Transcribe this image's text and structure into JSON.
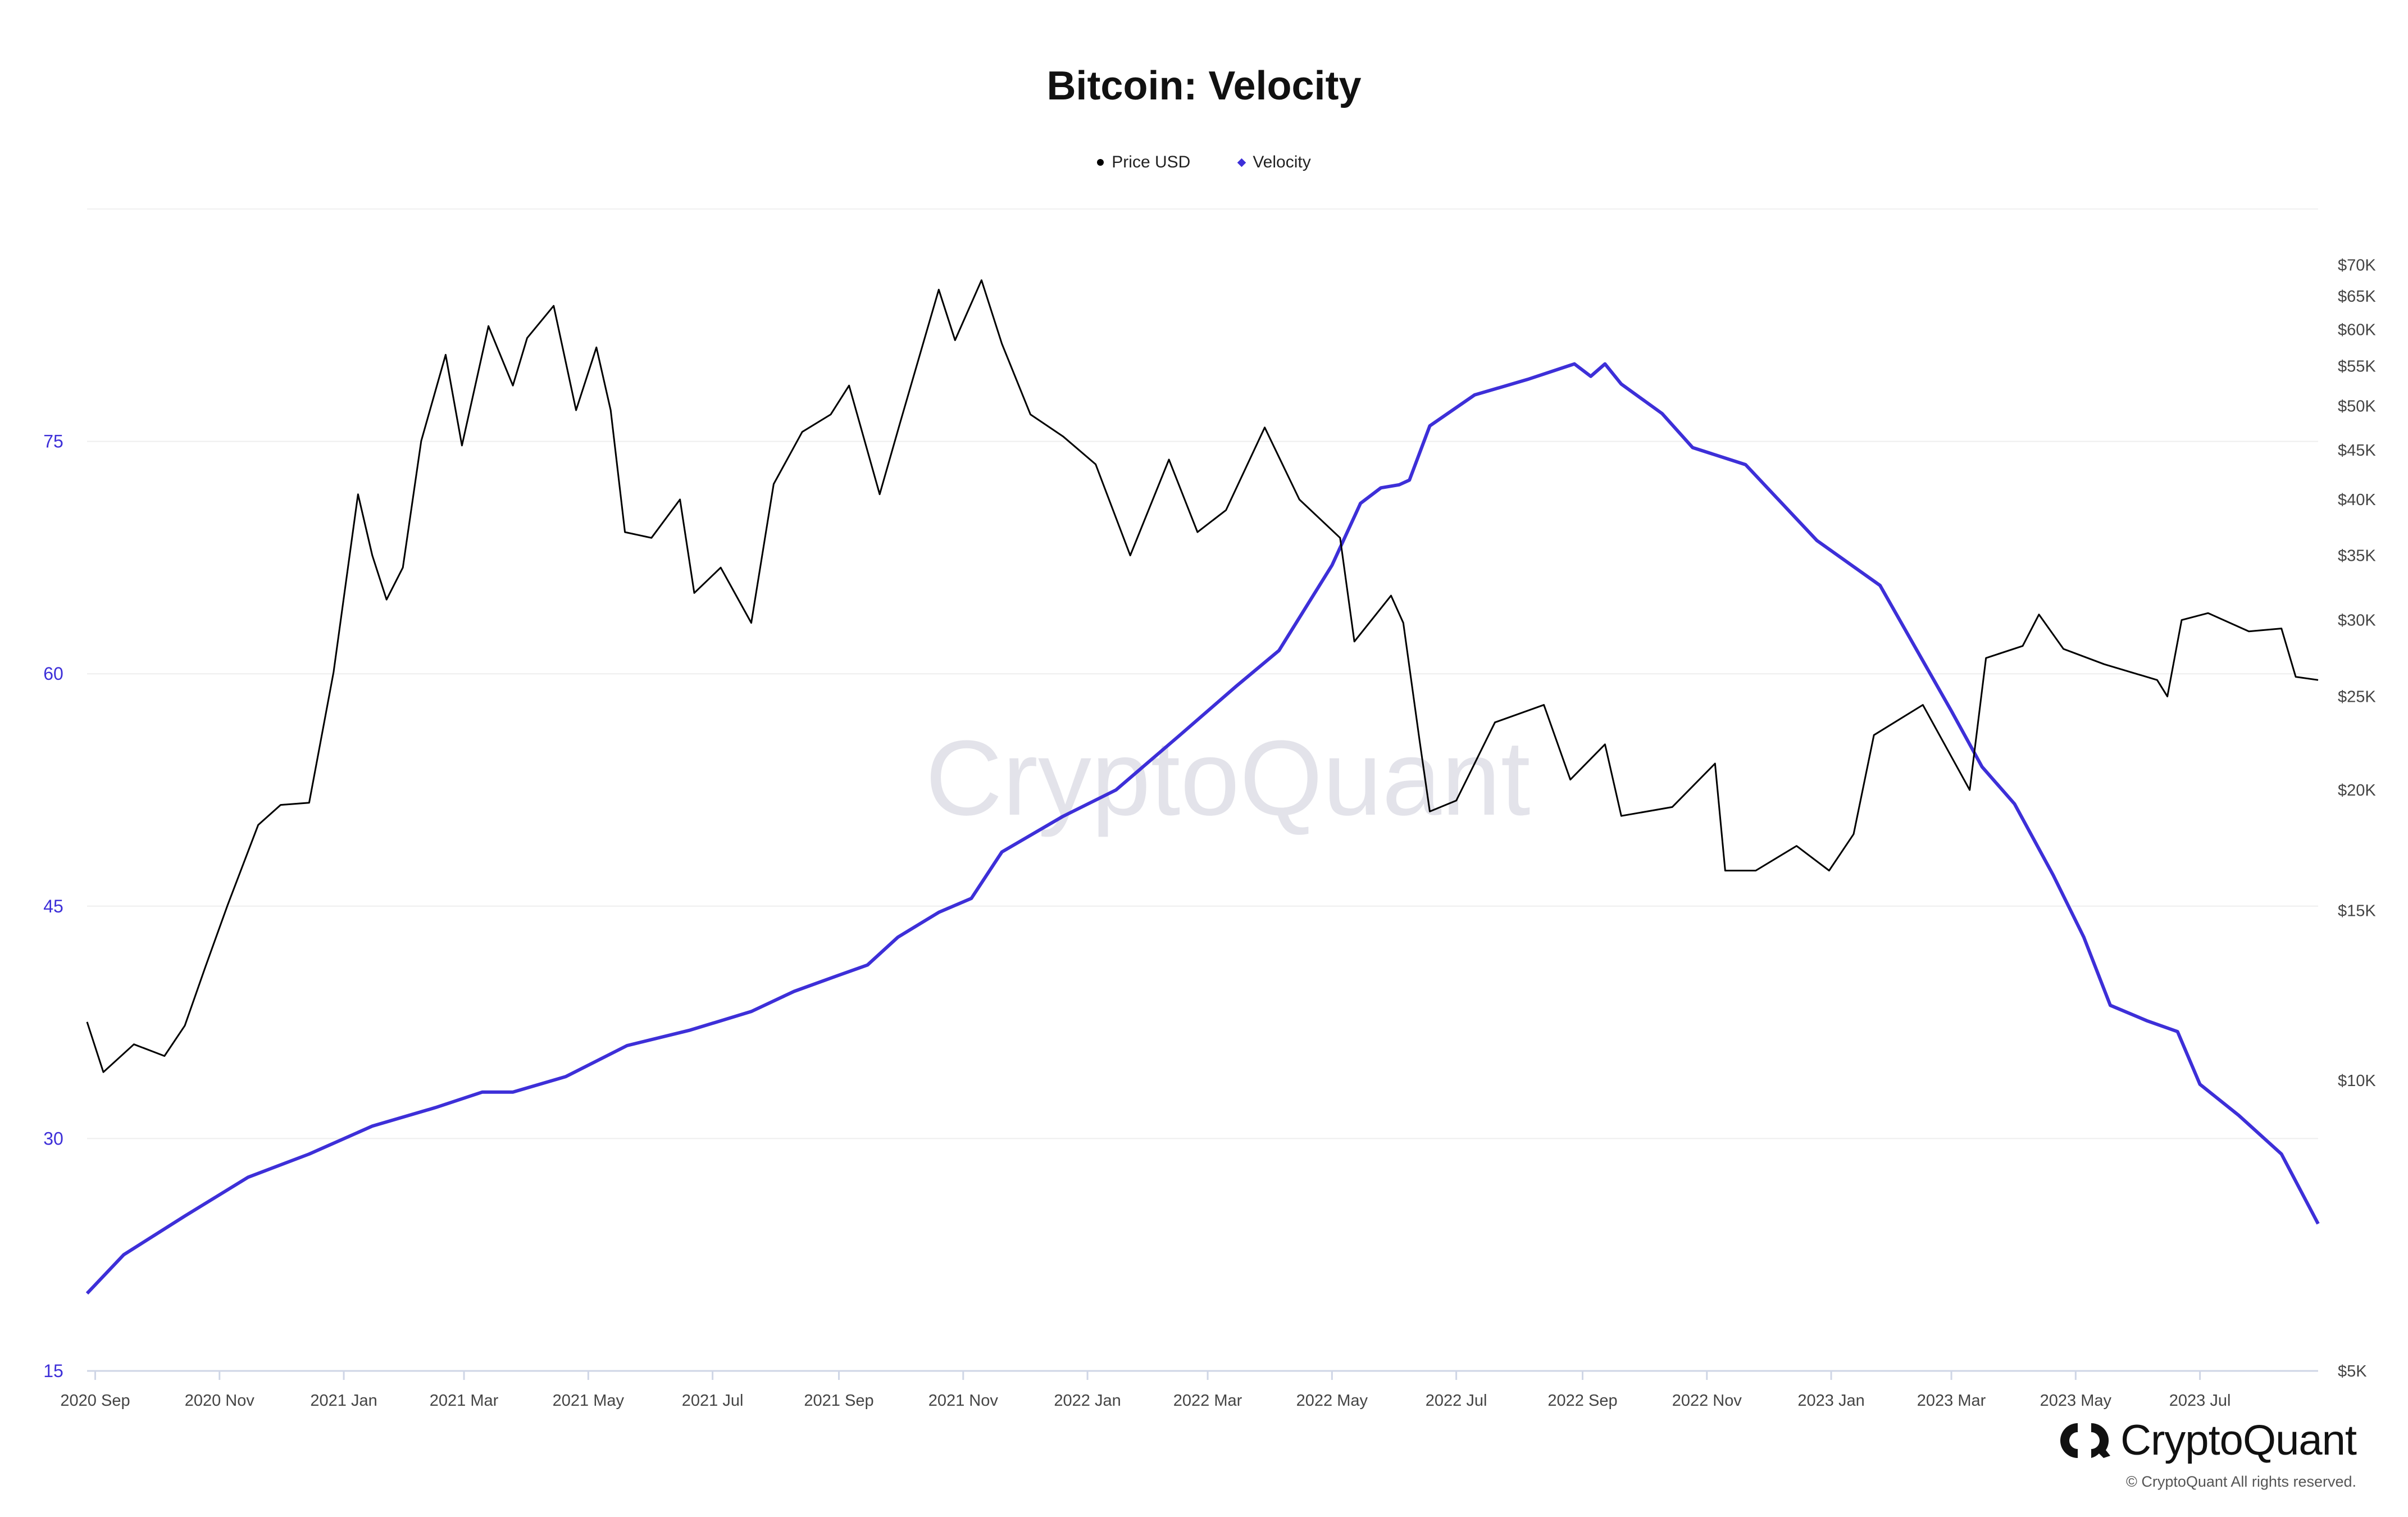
{
  "title": "Bitcoin: Velocity",
  "legend": [
    {
      "label": "Price USD",
      "color": "#000000",
      "marker": "circle"
    },
    {
      "label": "Velocity",
      "color": "#3d2fd8",
      "marker": "diamond"
    }
  ],
  "watermark": "CryptoQuant",
  "brand": {
    "name": "CryptoQuant",
    "logo_icon": "cryptoquant-logo-icon"
  },
  "copyright": "© CryptoQuant All rights reserved.",
  "chart_data": {
    "type": "line",
    "title": "Bitcoin: Velocity",
    "x_tick_labels": [
      "2020 Sep",
      "2020 Nov",
      "2021 Jan",
      "2021 Mar",
      "2021 May",
      "2021 Jul",
      "2021 Sep",
      "2021 Nov",
      "2022 Jan",
      "2022 Mar",
      "2022 May",
      "2022 Jul",
      "2022 Sep",
      "2022 Nov",
      "2023 Jan",
      "2023 Mar",
      "2023 May",
      "2023 Jul"
    ],
    "x_range": [
      "2020-08-28",
      "2023-08-28"
    ],
    "y_left": {
      "label": "",
      "range": [
        15,
        90
      ],
      "ticks": [
        15,
        30,
        45,
        60,
        75
      ],
      "tick_labels": [
        "15",
        "30",
        "45",
        "60",
        "75"
      ],
      "color": "#3d2fd8"
    },
    "y_right": {
      "label": "",
      "scale": "log",
      "range": [
        5000,
        80000
      ],
      "ticks": [
        5000,
        10000,
        15000,
        20000,
        25000,
        30000,
        35000,
        40000,
        45000,
        50000,
        55000,
        60000,
        65000,
        70000
      ],
      "tick_labels": [
        "$5K",
        "$10K",
        "$15K",
        "$20K",
        "$25K",
        "$30K",
        "$35K",
        "$40K",
        "$45K",
        "$50K",
        "$55K",
        "$60K",
        "$65K",
        "$70K"
      ]
    },
    "grid": true,
    "legend_position": "top-center",
    "series": [
      {
        "name": "Price USD",
        "axis": "right",
        "color": "#000000",
        "points": [
          [
            "2020-08-28",
            11500
          ],
          [
            "2020-09-05",
            10200
          ],
          [
            "2020-09-20",
            10900
          ],
          [
            "2020-10-05",
            10600
          ],
          [
            "2020-10-15",
            11400
          ],
          [
            "2020-10-25",
            13100
          ],
          [
            "2020-11-05",
            15200
          ],
          [
            "2020-11-20",
            18400
          ],
          [
            "2020-12-01",
            19300
          ],
          [
            "2020-12-15",
            19400
          ],
          [
            "2020-12-27",
            26500
          ],
          [
            "2021-01-08",
            40500
          ],
          [
            "2021-01-15",
            35000
          ],
          [
            "2021-01-22",
            31500
          ],
          [
            "2021-01-30",
            34000
          ],
          [
            "2021-02-08",
            46000
          ],
          [
            "2021-02-20",
            56500
          ],
          [
            "2021-02-28",
            45500
          ],
          [
            "2021-03-13",
            60500
          ],
          [
            "2021-03-25",
            52500
          ],
          [
            "2021-04-01",
            58800
          ],
          [
            "2021-04-14",
            63500
          ],
          [
            "2021-04-25",
            49500
          ],
          [
            "2021-05-05",
            57500
          ],
          [
            "2021-05-12",
            49500
          ],
          [
            "2021-05-19",
            37000
          ],
          [
            "2021-06-01",
            36500
          ],
          [
            "2021-06-15",
            40000
          ],
          [
            "2021-06-22",
            32000
          ],
          [
            "2021-07-05",
            34000
          ],
          [
            "2021-07-20",
            29800
          ],
          [
            "2021-07-31",
            41500
          ],
          [
            "2021-08-14",
            47000
          ],
          [
            "2021-08-28",
            49000
          ],
          [
            "2021-09-06",
            52500
          ],
          [
            "2021-09-21",
            40500
          ],
          [
            "2021-10-01",
            48000
          ],
          [
            "2021-10-20",
            66000
          ],
          [
            "2021-10-28",
            58500
          ],
          [
            "2021-11-10",
            67500
          ],
          [
            "2021-11-20",
            58000
          ],
          [
            "2021-12-04",
            49000
          ],
          [
            "2021-12-20",
            46500
          ],
          [
            "2022-01-05",
            43500
          ],
          [
            "2022-01-22",
            35000
          ],
          [
            "2022-02-10",
            44000
          ],
          [
            "2022-02-24",
            37000
          ],
          [
            "2022-03-10",
            39000
          ],
          [
            "2022-03-29",
            47500
          ],
          [
            "2022-04-15",
            40000
          ],
          [
            "2022-05-05",
            36500
          ],
          [
            "2022-05-12",
            28500
          ],
          [
            "2022-05-30",
            31800
          ],
          [
            "2022-06-05",
            29800
          ],
          [
            "2022-06-13",
            22500
          ],
          [
            "2022-06-18",
            19000
          ],
          [
            "2022-07-01",
            19500
          ],
          [
            "2022-07-20",
            23500
          ],
          [
            "2022-08-13",
            24500
          ],
          [
            "2022-08-26",
            20500
          ],
          [
            "2022-09-12",
            22300
          ],
          [
            "2022-09-20",
            18800
          ],
          [
            "2022-10-15",
            19200
          ],
          [
            "2022-11-05",
            21300
          ],
          [
            "2022-11-10",
            16500
          ],
          [
            "2022-11-25",
            16500
          ],
          [
            "2022-12-15",
            17500
          ],
          [
            "2022-12-31",
            16500
          ],
          [
            "2023-01-12",
            18000
          ],
          [
            "2023-01-22",
            22800
          ],
          [
            "2023-02-15",
            24500
          ],
          [
            "2023-03-10",
            20000
          ],
          [
            "2023-03-18",
            27400
          ],
          [
            "2023-04-05",
            28200
          ],
          [
            "2023-04-13",
            30400
          ],
          [
            "2023-04-25",
            28000
          ],
          [
            "2023-05-15",
            27000
          ],
          [
            "2023-06-10",
            26000
          ],
          [
            "2023-06-15",
            25000
          ],
          [
            "2023-06-22",
            30000
          ],
          [
            "2023-07-05",
            30500
          ],
          [
            "2023-07-25",
            29200
          ],
          [
            "2023-08-10",
            29400
          ],
          [
            "2023-08-17",
            26200
          ],
          [
            "2023-08-28",
            26000
          ]
        ]
      },
      {
        "name": "Velocity",
        "axis": "left",
        "color": "#3d2fd8",
        "points": [
          [
            "2020-08-28",
            20.0
          ],
          [
            "2020-09-15",
            22.5
          ],
          [
            "2020-10-15",
            25.0
          ],
          [
            "2020-11-15",
            27.5
          ],
          [
            "2020-12-15",
            29.0
          ],
          [
            "2021-01-15",
            30.8
          ],
          [
            "2021-02-15",
            32.0
          ],
          [
            "2021-03-10",
            33.0
          ],
          [
            "2021-03-25",
            33.0
          ],
          [
            "2021-04-20",
            34.0
          ],
          [
            "2021-05-20",
            36.0
          ],
          [
            "2021-06-20",
            37.0
          ],
          [
            "2021-07-20",
            38.2
          ],
          [
            "2021-08-10",
            39.5
          ],
          [
            "2021-08-31",
            40.5
          ],
          [
            "2021-09-15",
            41.2
          ],
          [
            "2021-09-30",
            43.0
          ],
          [
            "2021-10-20",
            44.6
          ],
          [
            "2021-11-05",
            45.5
          ],
          [
            "2021-11-20",
            48.5
          ],
          [
            "2021-12-20",
            50.8
          ],
          [
            "2022-01-15",
            52.5
          ],
          [
            "2022-02-15",
            56.0
          ],
          [
            "2022-03-15",
            59.2
          ],
          [
            "2022-04-05",
            61.5
          ],
          [
            "2022-05-01",
            67.0
          ],
          [
            "2022-05-15",
            71.0
          ],
          [
            "2022-05-25",
            72.0
          ],
          [
            "2022-06-03",
            72.2
          ],
          [
            "2022-06-08",
            72.5
          ],
          [
            "2022-06-18",
            76.0
          ],
          [
            "2022-07-10",
            78.0
          ],
          [
            "2022-08-05",
            79.0
          ],
          [
            "2022-08-28",
            80.0
          ],
          [
            "2022-09-05",
            79.2
          ],
          [
            "2022-09-12",
            80.0
          ],
          [
            "2022-09-20",
            78.7
          ],
          [
            "2022-10-10",
            76.8
          ],
          [
            "2022-10-25",
            74.6
          ],
          [
            "2022-11-20",
            73.5
          ],
          [
            "2022-12-05",
            71.4
          ],
          [
            "2022-12-25",
            68.6
          ],
          [
            "2023-01-25",
            65.7
          ],
          [
            "2023-02-10",
            62.0
          ],
          [
            "2023-03-01",
            57.6
          ],
          [
            "2023-03-16",
            54.0
          ],
          [
            "2023-04-01",
            51.6
          ],
          [
            "2023-04-20",
            47.0
          ],
          [
            "2023-05-05",
            43.0
          ],
          [
            "2023-05-18",
            38.6
          ],
          [
            "2023-06-05",
            37.6
          ],
          [
            "2023-06-20",
            36.9
          ],
          [
            "2023-07-01",
            33.5
          ],
          [
            "2023-07-20",
            31.5
          ],
          [
            "2023-08-10",
            29.0
          ],
          [
            "2023-08-28",
            24.5
          ]
        ]
      }
    ]
  }
}
